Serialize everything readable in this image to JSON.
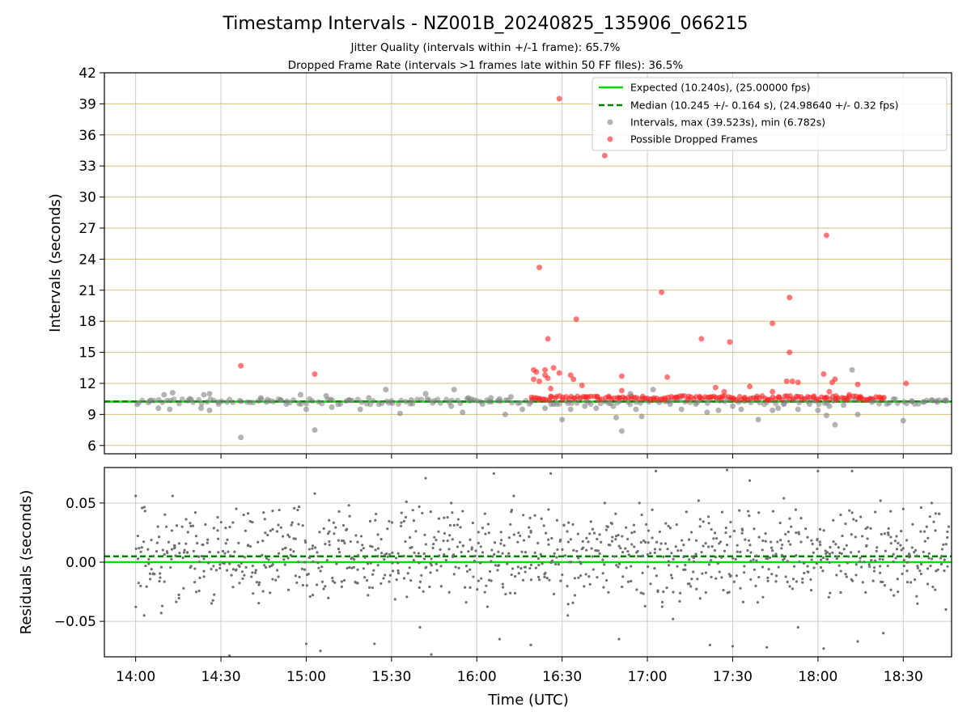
{
  "chart_data": [
    {
      "type": "scatter",
      "title": "Timestamp Intervals - NZ001B_20240825_135906_066215",
      "subtitle_lines": [
        "Jitter Quality (intervals within +/-1 frame): 65.7%",
        "Dropped Frame Rate (intervals >1 frames late within 50 FF files): 36.5%"
      ],
      "xlabel": "",
      "ylabel": "Intervals (seconds)",
      "x_unit": "time_of_day_UTC",
      "xlim": [
        "13:49",
        "18:47"
      ],
      "ylim": [
        5.2,
        42
      ],
      "yticks": [
        6,
        9,
        12,
        15,
        18,
        21,
        24,
        27,
        30,
        33,
        36,
        39,
        42
      ],
      "ytick_labels": [
        "6",
        "9",
        "12",
        "15",
        "18",
        "21",
        "24",
        "27",
        "30",
        "33",
        "36",
        "39",
        "42"
      ],
      "xticks": [
        "14:00",
        "14:30",
        "15:00",
        "15:30",
        "16:00",
        "16:30",
        "17:00",
        "17:30",
        "18:00",
        "18:30"
      ],
      "grid": {
        "x": true,
        "y": true,
        "y_color": "#d8c27a"
      },
      "legend_position": "top-right",
      "series": [
        {
          "name": "Expected (10.240s), (25.00000 fps)",
          "kind": "hline",
          "y": 10.24,
          "color": "#00e000",
          "style": "solid"
        },
        {
          "name": "Median (10.245 +/- 0.164 s), (24.98640 +/- 0.32 fps)",
          "kind": "hline",
          "y": 10.245,
          "color": "#008000",
          "style": "dashed"
        },
        {
          "name": "Intervals, max (39.523s), min (6.782s)",
          "kind": "scatter",
          "color": "#808080",
          "points": [
            [
              "14:05",
              10.3
            ],
            [
              "14:08",
              9.6
            ],
            [
              "14:10",
              10.9
            ],
            [
              "14:12",
              9.5
            ],
            [
              "14:13",
              11.1
            ],
            [
              "14:19",
              10.5
            ],
            [
              "14:23",
              9.6
            ],
            [
              "14:24",
              10.9
            ],
            [
              "14:26",
              11.0
            ],
            [
              "14:26",
              9.4
            ],
            [
              "14:29",
              10.2
            ],
            [
              "14:37",
              6.78
            ],
            [
              "14:44",
              10.6
            ],
            [
              "14:46",
              10.2
            ],
            [
              "14:51",
              10.4
            ],
            [
              "14:53",
              10.0
            ],
            [
              "14:58",
              10.9
            ],
            [
              "15:00",
              9.5
            ],
            [
              "15:03",
              7.5
            ],
            [
              "15:07",
              10.8
            ],
            [
              "15:09",
              9.7
            ],
            [
              "15:15",
              10.4
            ],
            [
              "15:19",
              9.5
            ],
            [
              "15:22",
              10.6
            ],
            [
              "15:28",
              11.4
            ],
            [
              "15:30",
              10.3
            ],
            [
              "15:33",
              9.1
            ],
            [
              "15:37",
              10.4
            ],
            [
              "15:42",
              11.0
            ],
            [
              "15:45",
              10.3
            ],
            [
              "15:51",
              9.8
            ],
            [
              "15:52",
              11.4
            ],
            [
              "15:55",
              9.2
            ],
            [
              "15:57",
              10.6
            ],
            [
              "15:59",
              10.4
            ],
            [
              "16:02",
              10.0
            ],
            [
              "16:05",
              10.6
            ],
            [
              "16:08",
              10.5
            ],
            [
              "16:10",
              9.0
            ],
            [
              "16:12",
              10.7
            ],
            [
              "16:16",
              9.5
            ],
            [
              "16:19",
              10.2
            ],
            [
              "16:24",
              9.6
            ],
            [
              "16:27",
              10.0
            ],
            [
              "16:30",
              8.5
            ],
            [
              "16:33",
              9.5
            ],
            [
              "16:38",
              9.8
            ],
            [
              "16:42",
              9.6
            ],
            [
              "16:48",
              9.8
            ],
            [
              "16:49",
              8.7
            ],
            [
              "16:51",
              7.4
            ],
            [
              "16:54",
              11.0
            ],
            [
              "16:56",
              9.5
            ],
            [
              "16:58",
              8.8
            ],
            [
              "17:02",
              11.4
            ],
            [
              "17:08",
              10.0
            ],
            [
              "17:12",
              9.5
            ],
            [
              "17:17",
              10.0
            ],
            [
              "17:21",
              9.2
            ],
            [
              "17:25",
              9.4
            ],
            [
              "17:30",
              9.8
            ],
            [
              "17:33",
              9.5
            ],
            [
              "17:39",
              8.5
            ],
            [
              "17:44",
              9.4
            ],
            [
              "17:46",
              9.6
            ],
            [
              "17:48",
              10.0
            ],
            [
              "17:53",
              9.5
            ],
            [
              "17:57",
              10.0
            ],
            [
              "18:00",
              9.4
            ],
            [
              "18:03",
              8.9
            ],
            [
              "18:04",
              9.8
            ],
            [
              "18:06",
              8.0
            ],
            [
              "18:09",
              9.9
            ],
            [
              "18:12",
              13.3
            ],
            [
              "18:14",
              9.0
            ],
            [
              "18:19",
              10.2
            ],
            [
              "18:25",
              10.1
            ],
            [
              "18:30",
              8.4
            ],
            [
              "18:33",
              10.3
            ],
            [
              "18:37",
              10.2
            ],
            [
              "18:40",
              10.4
            ],
            [
              "18:42",
              10.2
            ],
            [
              "18:45",
              10.3
            ]
          ]
        },
        {
          "name": "Possible Dropped Frames",
          "kind": "scatter",
          "color": "#ff2020",
          "points": [
            [
              "14:37",
              13.7
            ],
            [
              "15:03",
              12.9
            ],
            [
              "16:20",
              13.3
            ],
            [
              "16:20",
              12.4
            ],
            [
              "16:21",
              13.1
            ],
            [
              "16:22",
              23.2
            ],
            [
              "16:22",
              12.2
            ],
            [
              "16:24",
              13.3
            ],
            [
              "16:24",
              12.8
            ],
            [
              "16:25",
              12.5
            ],
            [
              "16:25",
              16.3
            ],
            [
              "16:26",
              11.5
            ],
            [
              "16:27",
              13.5
            ],
            [
              "16:29",
              39.5
            ],
            [
              "16:29",
              13.0
            ],
            [
              "16:33",
              12.8
            ],
            [
              "16:34",
              12.4
            ],
            [
              "16:35",
              18.2
            ],
            [
              "16:37",
              11.8
            ],
            [
              "16:45",
              34.0
            ],
            [
              "16:51",
              12.7
            ],
            [
              "16:51",
              11.3
            ],
            [
              "17:05",
              20.8
            ],
            [
              "17:07",
              12.6
            ],
            [
              "17:19",
              16.3
            ],
            [
              "17:24",
              11.6
            ],
            [
              "17:27",
              11.2
            ],
            [
              "17:29",
              16.0
            ],
            [
              "17:36",
              11.7
            ],
            [
              "17:44",
              17.8
            ],
            [
              "17:44",
              11.2
            ],
            [
              "17:49",
              12.2
            ],
            [
              "17:50",
              15.0
            ],
            [
              "17:50",
              20.3
            ],
            [
              "17:51",
              12.2
            ],
            [
              "17:53",
              12.1
            ],
            [
              "18:02",
              12.9
            ],
            [
              "18:03",
              26.3
            ],
            [
              "18:04",
              11.2
            ],
            [
              "18:05",
              12.1
            ],
            [
              "18:06",
              12.4
            ],
            [
              "18:11",
              10.9
            ],
            [
              "18:14",
              11.9
            ],
            [
              "18:15",
              10.7
            ],
            [
              "18:31",
              12.0
            ]
          ]
        }
      ]
    },
    {
      "type": "scatter",
      "xlabel": "Time (UTC)",
      "ylabel": "Residuals (seconds)",
      "xlim": [
        "13:49",
        "18:47"
      ],
      "ylim": [
        -0.08,
        0.08
      ],
      "yticks": [
        -0.05,
        0.0,
        0.05
      ],
      "ytick_labels": [
        "−0.05",
        "0.00",
        "0.05"
      ],
      "xticks": [
        "14:00",
        "14:30",
        "15:00",
        "15:30",
        "16:00",
        "16:30",
        "17:00",
        "17:30",
        "18:00",
        "18:30"
      ],
      "grid": {
        "x": true,
        "y": true,
        "y_color": "#cccccc"
      },
      "series": [
        {
          "kind": "hline",
          "y": 0.0,
          "color": "#00e000",
          "style": "solid"
        },
        {
          "kind": "hline",
          "y": 0.005,
          "color": "#008000",
          "style": "dashed"
        },
        {
          "kind": "scatter",
          "color": "#707070",
          "points": [
            [
              "14:00",
              0.056
            ],
            [
              "14:03",
              -0.045
            ],
            [
              "14:09",
              -0.043
            ],
            [
              "14:13",
              0.056
            ],
            [
              "14:21",
              0.042
            ],
            [
              "14:33",
              -0.079
            ],
            [
              "14:38",
              0.04
            ],
            [
              "14:45",
              0.042
            ],
            [
              "14:57",
              0.044
            ],
            [
              "15:00",
              -0.069
            ],
            [
              "15:03",
              0.058
            ],
            [
              "15:05",
              -0.075
            ],
            [
              "15:15",
              0.048
            ],
            [
              "15:24",
              -0.069
            ],
            [
              "15:35",
              0.038
            ],
            [
              "15:40",
              -0.055
            ],
            [
              "15:42",
              0.071
            ],
            [
              "15:44",
              -0.078
            ],
            [
              "15:51",
              0.05
            ],
            [
              "16:06",
              0.075
            ],
            [
              "16:08",
              -0.065
            ],
            [
              "16:13",
              0.056
            ],
            [
              "16:19",
              -0.07
            ],
            [
              "16:26",
              0.075
            ],
            [
              "16:32",
              -0.045
            ],
            [
              "16:45",
              0.05
            ],
            [
              "16:50",
              -0.065
            ],
            [
              "16:58",
              0.04
            ],
            [
              "17:03",
              0.077
            ],
            [
              "17:09",
              -0.048
            ],
            [
              "17:18",
              0.052
            ],
            [
              "17:22",
              -0.07
            ],
            [
              "17:28",
              0.078
            ],
            [
              "17:30",
              -0.071
            ],
            [
              "17:36",
              0.069
            ],
            [
              "17:42",
              -0.072
            ],
            [
              "17:48",
              0.054
            ],
            [
              "17:53",
              -0.055
            ],
            [
              "18:00",
              0.077
            ],
            [
              "18:02",
              -0.073
            ],
            [
              "18:08",
              0.04
            ],
            [
              "18:12",
              0.077
            ],
            [
              "18:14",
              -0.067
            ],
            [
              "18:22",
              0.052
            ],
            [
              "18:23",
              -0.06
            ],
            [
              "18:30",
              0.045
            ],
            [
              "18:35",
              -0.035
            ],
            [
              "18:40",
              0.05
            ],
            [
              "18:45",
              -0.04
            ],
            [
              "18:46",
              0.03
            ]
          ]
        }
      ]
    }
  ]
}
